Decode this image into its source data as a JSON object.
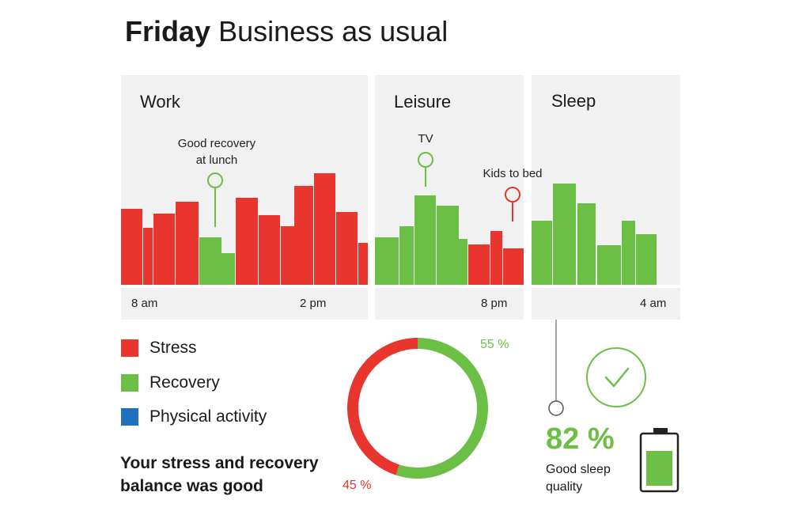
{
  "header": {
    "day": "Friday",
    "subtitle": "Business as usual"
  },
  "colors": {
    "stress": "#e8352e",
    "recovery": "#6cbf45",
    "physical": "#1f6fba",
    "panel_bg": "#f1f1f1"
  },
  "chart_data": {
    "type": "bar",
    "sections": [
      {
        "name": "Work",
        "start": 0,
        "end": 13
      },
      {
        "name": "Leisure",
        "start": 13,
        "end": 20
      },
      {
        "name": "Sleep",
        "start": 20,
        "end": 27
      }
    ],
    "x_ticks": [
      "8 am",
      "2 pm",
      "8 pm",
      "4 am"
    ],
    "bars": [
      {
        "v": 96,
        "c": "stress"
      },
      {
        "v": 72,
        "c": "stress"
      },
      {
        "v": 90,
        "c": "stress"
      },
      {
        "v": 105,
        "c": "stress"
      },
      {
        "v": 60,
        "c": "recovery"
      },
      {
        "v": 40,
        "c": "recovery"
      },
      {
        "v": 110,
        "c": "stress"
      },
      {
        "v": 88,
        "c": "stress"
      },
      {
        "v": 74,
        "c": "stress"
      },
      {
        "v": 125,
        "c": "stress"
      },
      {
        "v": 141,
        "c": "stress"
      },
      {
        "v": 92,
        "c": "stress"
      },
      {
        "v": 53,
        "c": "stress"
      },
      {
        "v": 60,
        "c": "recovery"
      },
      {
        "v": 74,
        "c": "recovery"
      },
      {
        "v": 113,
        "c": "recovery"
      },
      {
        "v": 100,
        "c": "recovery"
      },
      {
        "v": 58,
        "c": "recovery"
      },
      {
        "v": 51,
        "c": "stress"
      },
      {
        "v": 68,
        "c": "stress"
      },
      {
        "v": 46,
        "c": "stress"
      },
      {
        "v": 81,
        "c": "recovery"
      },
      {
        "v": 128,
        "c": "recovery"
      },
      {
        "v": 103,
        "c": "recovery"
      },
      {
        "v": 50,
        "c": "recovery"
      },
      {
        "v": 81,
        "c": "recovery"
      },
      {
        "v": 64,
        "c": "recovery"
      }
    ],
    "annotations": [
      {
        "text_line1": "Good recovery",
        "text_line2": "at lunch",
        "color": "recovery"
      },
      {
        "text_line1": "TV",
        "text_line2": "",
        "color": "recovery"
      },
      {
        "text_line1": "Kids to bed",
        "text_line2": "",
        "color": "stress"
      }
    ],
    "balance": {
      "recovery_pct": 55,
      "stress_pct": 45,
      "recovery_label": "55 %",
      "stress_label": "45 %"
    }
  },
  "legend": [
    {
      "label": "Stress",
      "color": "#e8352e"
    },
    {
      "label": "Recovery",
      "color": "#6cbf45"
    },
    {
      "label": "Physical activity",
      "color": "#1f6fba"
    }
  ],
  "summary": {
    "line1": "Your stress and recovery",
    "line2": "balance was good"
  },
  "sleep": {
    "percent": "82 %",
    "line1": "Good sleep",
    "line2": "quality",
    "battery_level": 0.82,
    "icon": "checkmark-icon"
  }
}
